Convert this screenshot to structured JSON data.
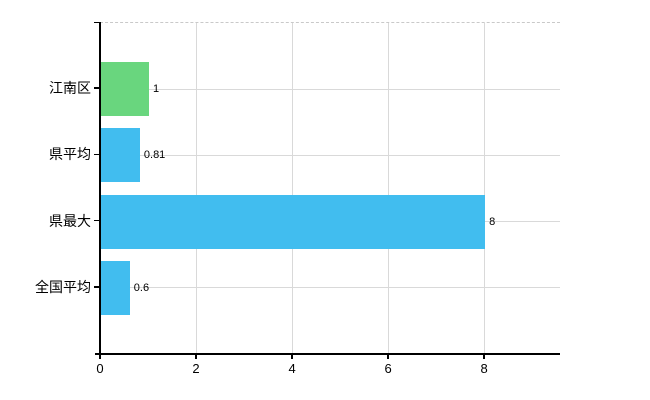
{
  "chart_data": {
    "type": "bar",
    "orientation": "horizontal",
    "title": "",
    "categories": [
      "江南区",
      "県平均",
      "県最大",
      "全国平均"
    ],
    "values": [
      1,
      0.81,
      8,
      0.6
    ],
    "value_labels": [
      "1",
      "0.81",
      "8",
      "0.6"
    ],
    "bar_colors": [
      "#69d67e",
      "#41bdef",
      "#41bdef",
      "#41bdef"
    ],
    "x_tick_labels": [
      "0",
      "2",
      "4",
      "6",
      "8"
    ],
    "x_tick_values": [
      0,
      2,
      4,
      6,
      8
    ],
    "xlim": [
      0,
      9.58
    ],
    "grid": true,
    "legend": "none",
    "colors": {
      "grid": "#d9d9d9",
      "top_border": "#c9c9c9",
      "axis": "#000000",
      "text": "#000000",
      "background": "#ffffff",
      "green_bar": "#69d67e",
      "blue_bar": "#41bdef"
    }
  }
}
